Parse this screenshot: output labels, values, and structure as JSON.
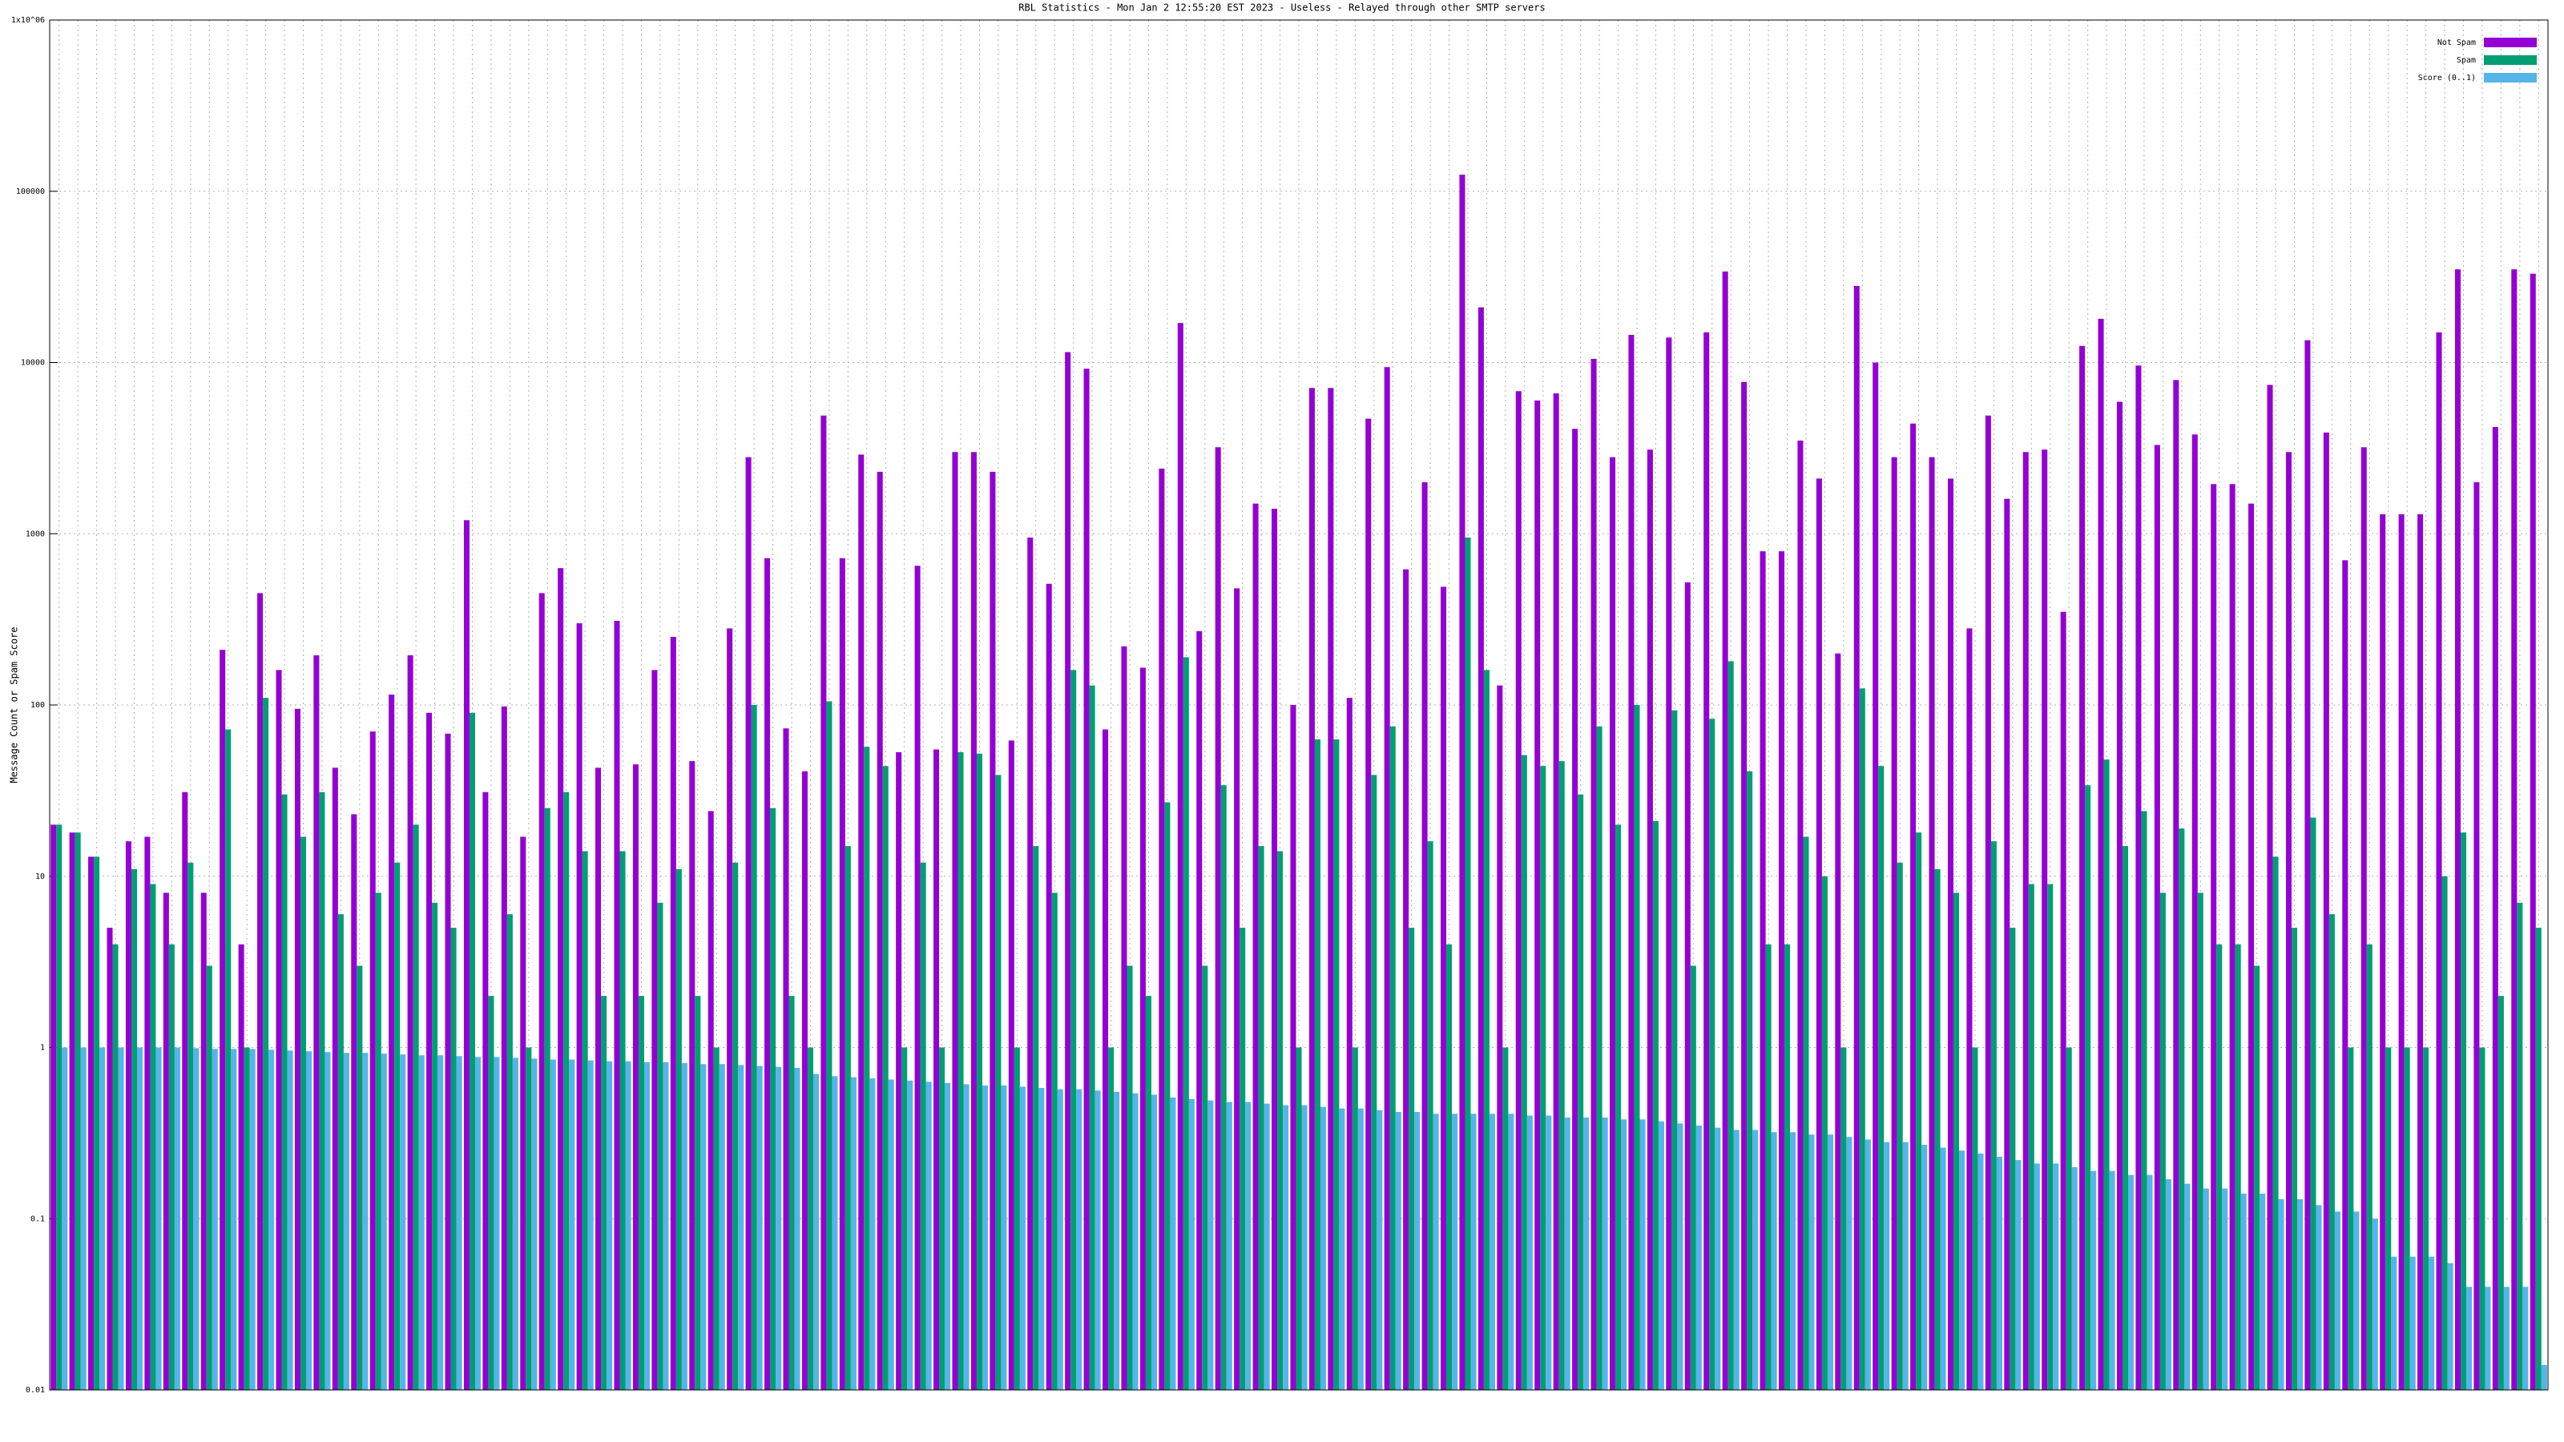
{
  "chart_data": {
    "type": "bar",
    "title": "RBL Statistics - Mon Jan  2 12:55:20 EST 2023 - Useless - Relayed through other SMTP servers",
    "y_label": "Message Count or Spam Score",
    "log_scale": true,
    "grid": true,
    "legend": "top-right",
    "ylim": [
      0.01,
      1000000
    ],
    "yticks": [
      0.01,
      0.1,
      1,
      10,
      100,
      1000,
      10000,
      100000,
      {
        "value": 1000000,
        "label": "1x10^06"
      }
    ],
    "categories": [
      null,
      null,
      null,
      null,
      null,
      null,
      null,
      null,
      null,
      null,
      null,
      null,
      null,
      null,
      null,
      null,
      null,
      null,
      null,
      null,
      null,
      null,
      null,
      null,
      null,
      null,
      null,
      null,
      null,
      null,
      null,
      null,
      null,
      null,
      null,
      null,
      null,
      null,
      null,
      null,
      null,
      null,
      null,
      null,
      null,
      null,
      null,
      null,
      null,
      null,
      null,
      null,
      null,
      null,
      null,
      null,
      null,
      null,
      null,
      null,
      null,
      null,
      null,
      null,
      null,
      null,
      null,
      null,
      null,
      null,
      null,
      null,
      null,
      null,
      null,
      null,
      null,
      null,
      null,
      null,
      null,
      null,
      null,
      null,
      null,
      null,
      null,
      null,
      null,
      null,
      null,
      null,
      null,
      null,
      null,
      null,
      null,
      null,
      null,
      null,
      null,
      null,
      null,
      null,
      null,
      null,
      null,
      null,
      null,
      null,
      null,
      null,
      null,
      null,
      null,
      null,
      null,
      null,
      null,
      null,
      null,
      null,
      null,
      null,
      null,
      null,
      null,
      null,
      null,
      null,
      null,
      null,
      null
    ],
    "series": [
      {
        "name": "Not Spam",
        "color": "#9400d3",
        "values": [
          20,
          18,
          13,
          5,
          16,
          17,
          8,
          31,
          8,
          210,
          4,
          450,
          160,
          95,
          195,
          43,
          23,
          70,
          115,
          195,
          90,
          68,
          1200,
          31,
          98,
          17,
          450,
          630,
          300,
          43,
          310,
          45,
          160,
          250,
          47,
          24,
          280,
          2800,
          720,
          73,
          41,
          4900,
          720,
          2900,
          2300,
          53,
          650,
          55,
          3000,
          3000,
          2300,
          62,
          950,
          510,
          11500,
          9200,
          72,
          220,
          165,
          2400,
          17000,
          270,
          3200,
          480,
          1500,
          1400,
          100,
          7100,
          7100,
          110,
          4700,
          9400,
          620,
          2000,
          490,
          125000,
          21000,
          130,
          6800,
          6000,
          6600,
          4100,
          10500,
          2800,
          14500,
          3100,
          14000,
          520,
          15000,
          34000,
          7700,
          790,
          790,
          3500,
          2100,
          200,
          28000,
          10000,
          2800,
          4400,
          2800,
          2100,
          280,
          4900,
          1600,
          3000,
          3100,
          350,
          12500,
          18000,
          5900,
          9600,
          3300,
          7900,
          3800,
          1950,
          1950,
          1500,
          7400,
          3000,
          13500,
          3900,
          700,
          3200,
          1300,
          1300,
          1300,
          15000,
          35000,
          2000,
          4200,
          35000,
          33000
        ]
      },
      {
        "name": "Spam",
        "color": "#009e73",
        "values": [
          20,
          18,
          13,
          4,
          11,
          9,
          4,
          12,
          3,
          72,
          1,
          110,
          30,
          17,
          31,
          6,
          3,
          8,
          12,
          20,
          7,
          5,
          90,
          2,
          6,
          1,
          25,
          31,
          14,
          2,
          14,
          2,
          7,
          11,
          2,
          1,
          12,
          100,
          25,
          2,
          1,
          105,
          15,
          57,
          44,
          1,
          12,
          1,
          53,
          52,
          39,
          1,
          15,
          8,
          160,
          130,
          1,
          3,
          2,
          27,
          190,
          3,
          34,
          5,
          15,
          14,
          1,
          63,
          63,
          1,
          39,
          75,
          5,
          16,
          4,
          950,
          160,
          1,
          51,
          44,
          47,
          30,
          75,
          20,
          100,
          21,
          93,
          3,
          83,
          180,
          41,
          4,
          4,
          17,
          10,
          1,
          125,
          44,
          12,
          18,
          11,
          8,
          1,
          16,
          5,
          9,
          9,
          1,
          34,
          48,
          15,
          24,
          8,
          19,
          8,
          4,
          4,
          3,
          13,
          5,
          22,
          6,
          1,
          4,
          1,
          1,
          1,
          10,
          18,
          1,
          2,
          7,
          5
        ]
      },
      {
        "name": "Score (0..1)",
        "color": "#56b4e9",
        "values": [
          1,
          1,
          1,
          1,
          1,
          1,
          1,
          0.99,
          0.98,
          0.98,
          0.98,
          0.97,
          0.96,
          0.95,
          0.94,
          0.93,
          0.93,
          0.92,
          0.91,
          0.9,
          0.9,
          0.89,
          0.88,
          0.88,
          0.87,
          0.86,
          0.85,
          0.85,
          0.84,
          0.83,
          0.83,
          0.82,
          0.82,
          0.81,
          0.8,
          0.8,
          0.79,
          0.78,
          0.77,
          0.76,
          0.7,
          0.68,
          0.67,
          0.66,
          0.65,
          0.64,
          0.63,
          0.62,
          0.61,
          0.6,
          0.6,
          0.59,
          0.58,
          0.57,
          0.57,
          0.56,
          0.55,
          0.54,
          0.53,
          0.51,
          0.5,
          0.49,
          0.48,
          0.48,
          0.47,
          0.46,
          0.46,
          0.45,
          0.44,
          0.44,
          0.43,
          0.42,
          0.42,
          0.41,
          0.41,
          0.41,
          0.41,
          0.41,
          0.4,
          0.4,
          0.39,
          0.39,
          0.39,
          0.38,
          0.38,
          0.37,
          0.36,
          0.35,
          0.34,
          0.33,
          0.33,
          0.32,
          0.32,
          0.31,
          0.31,
          0.3,
          0.29,
          0.28,
          0.28,
          0.27,
          0.26,
          0.25,
          0.24,
          0.23,
          0.22,
          0.21,
          0.21,
          0.2,
          0.19,
          0.19,
          0.18,
          0.18,
          0.17,
          0.16,
          0.15,
          0.15,
          0.14,
          0.14,
          0.13,
          0.13,
          0.12,
          0.11,
          0.11,
          0.1,
          0.06,
          0.06,
          0.06,
          0.055,
          0.04,
          0.04,
          0.04,
          0.04,
          0.014
        ]
      }
    ]
  }
}
